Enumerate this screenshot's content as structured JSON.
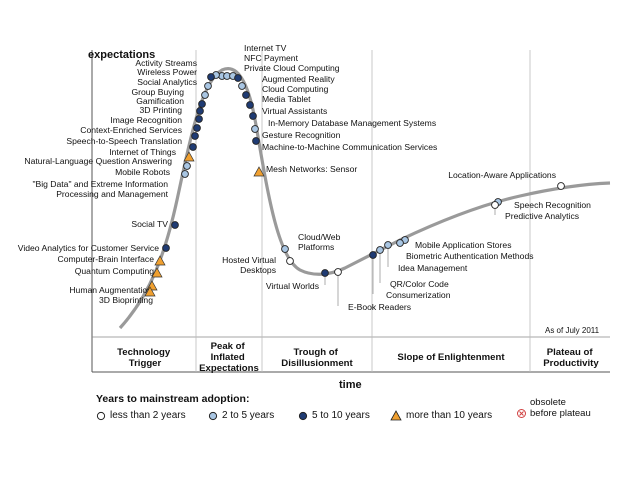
{
  "chart_data": {
    "type": "scatter",
    "ylabel": "expectations",
    "xlabel": "time",
    "as_of": "As of July 2011",
    "phases": [
      [
        "Technology",
        "Trigger"
      ],
      [
        "Peak of",
        "Inflated",
        "Expectations"
      ],
      [
        "Trough of",
        "Disillusionment"
      ],
      [
        "Slope of Enlightenment"
      ],
      [
        "Plateau of",
        "Productivity"
      ]
    ],
    "technologies": [
      {
        "name": "Internet TV",
        "category": "2to5",
        "phase": "Peak of Inflated Expectations"
      },
      {
        "name": "NFC Payment",
        "category": "2to5",
        "phase": "Peak of Inflated Expectations"
      },
      {
        "name": "Private Cloud Computing",
        "category": "2to5",
        "phase": "Peak of Inflated Expectations"
      },
      {
        "name": "Augmented Reality",
        "category": "5to10",
        "phase": "Peak of Inflated Expectations"
      },
      {
        "name": "Cloud Computing",
        "category": "2to5",
        "phase": "Peak of Inflated Expectations"
      },
      {
        "name": "Media Tablet",
        "category": "5to10",
        "phase": "Peak of Inflated Expectations"
      },
      {
        "name": "Virtual Assistants",
        "category": "5to10",
        "phase": "Peak of Inflated Expectations"
      },
      {
        "name": "In-Memory Database Management Systems",
        "category": "5to10",
        "phase": "Peak of Inflated Expectations"
      },
      {
        "name": "Gesture Recognition",
        "category": "2to5",
        "phase": "Peak of Inflated Expectations"
      },
      {
        "name": "Machine-to-Machine Communication Services",
        "category": "5to10",
        "phase": "Peak of Inflated Expectations"
      },
      {
        "name": "Mesh Networks: Sensor",
        "category": "more10",
        "phase": "Trough of Disillusionment"
      },
      {
        "name": "Activity Streams",
        "category": "2to5",
        "phase": "Peak of Inflated Expectations"
      },
      {
        "name": "Wireless Power",
        "category": "5to10",
        "phase": "Peak of Inflated Expectations"
      },
      {
        "name": "Social Analytics",
        "category": "2to5",
        "phase": "Peak of Inflated Expectations"
      },
      {
        "name": "Group Buying",
        "category": "2to5",
        "phase": "Peak of Inflated Expectations"
      },
      {
        "name": "Gamification",
        "category": "5to10",
        "phase": "Technology Trigger"
      },
      {
        "name": "3D Printing",
        "category": "5to10",
        "phase": "Technology Trigger"
      },
      {
        "name": "Image Recognition",
        "category": "5to10",
        "phase": "Technology Trigger"
      },
      {
        "name": "Context-Enriched Services",
        "category": "5to10",
        "phase": "Technology Trigger"
      },
      {
        "name": "Speech-to-Speech Translation",
        "category": "5to10",
        "phase": "Technology Trigger"
      },
      {
        "name": "Internet of Things",
        "category": "5to10",
        "phase": "Technology Trigger"
      },
      {
        "name": "Natural-Language Question Answering",
        "category": "more10",
        "phase": "Technology Trigger"
      },
      {
        "name": "Mobile Robots",
        "category": "2to5",
        "phase": "Technology Trigger"
      },
      {
        "name": "\"Big Data\" and Extreme Information Processing and Management",
        "category": "2to5",
        "phase": "Technology Trigger"
      },
      {
        "name": "Social TV",
        "category": "5to10",
        "phase": "Technology Trigger"
      },
      {
        "name": "Video Analytics for Customer Service",
        "category": "5to10",
        "phase": "Technology Trigger"
      },
      {
        "name": "Computer-Brain Interface",
        "category": "more10",
        "phase": "Technology Trigger"
      },
      {
        "name": "Quantum Computing",
        "category": "more10",
        "phase": "Technology Trigger"
      },
      {
        "name": "Human Augmentation",
        "category": "more10",
        "phase": "Technology Trigger"
      },
      {
        "name": "3D Bioprinting",
        "category": "more10",
        "phase": "Technology Trigger"
      },
      {
        "name": "Cloud/Web Platforms",
        "category": "2to5",
        "phase": "Trough of Disillusionment"
      },
      {
        "name": "Hosted Virtual Desktops",
        "category": "lt2",
        "phase": "Trough of Disillusionment"
      },
      {
        "name": "Virtual Worlds",
        "category": "5to10",
        "phase": "Trough of Disillusionment"
      },
      {
        "name": "E-Book Readers",
        "category": "lt2",
        "phase": "Trough of Disillusionment"
      },
      {
        "name": "Mobile Application Stores",
        "category": "2to5",
        "phase": "Slope of Enlightenment"
      },
      {
        "name": "Biometric Authentication Methods",
        "category": "2to5",
        "phase": "Slope of Enlightenment"
      },
      {
        "name": "Idea Management",
        "category": "2to5",
        "phase": "Slope of Enlightenment"
      },
      {
        "name": "QR/Color Code",
        "category": "2to5",
        "phase": "Slope of Enlightenment"
      },
      {
        "name": "Consumerization",
        "category": "5to10",
        "phase": "Slope of Enlightenment"
      },
      {
        "name": "Location-Aware Applications",
        "category": "lt2",
        "phase": "Slope of Enlightenment"
      },
      {
        "name": "Speech Recognition",
        "category": "2to5",
        "phase": "Slope of Enlightenment"
      },
      {
        "name": "Predictive Analytics",
        "category": "lt2",
        "phase": "Slope of Enlightenment"
      }
    ]
  },
  "legend": {
    "title": "Years to mainstream adoption:",
    "items": [
      {
        "key": "lt2",
        "label": "less than 2 years",
        "color": "#ffffff"
      },
      {
        "key": "2to5",
        "label": "2 to 5 years",
        "color": "#a9c6e3"
      },
      {
        "key": "5to10",
        "label": "5 to 10 years",
        "color": "#1f3b73"
      },
      {
        "key": "more10",
        "label": "more than 10 years",
        "color": "#f0a030"
      }
    ],
    "obsolete": [
      "obsolete",
      "before plateau"
    ]
  }
}
